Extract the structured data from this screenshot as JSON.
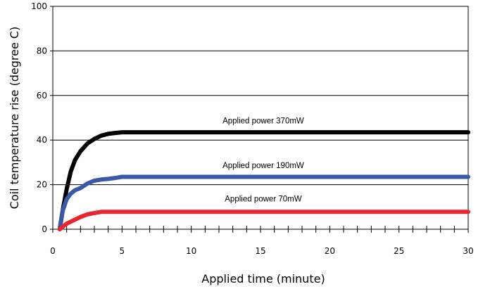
{
  "chart_data": {
    "type": "line",
    "title": "",
    "xlabel": "Applied time (minute)",
    "ylabel": "Coil temperature rise (degree C)",
    "xlim": [
      0,
      30
    ],
    "ylim": [
      0,
      100
    ],
    "x_ticks": [
      0,
      5,
      10,
      15,
      20,
      25,
      30
    ],
    "y_ticks": [
      0,
      20,
      40,
      60,
      80,
      100
    ],
    "grid": "horizontal",
    "legend": "none",
    "series": [
      {
        "color": "#000000",
        "x": [
          0.5,
          0.7,
          1.0,
          1.3,
          1.6,
          2.0,
          2.5,
          3.0,
          3.5,
          4.0,
          4.5,
          5.0,
          6.0,
          8.0,
          10,
          15,
          20,
          25,
          30
        ],
        "y": [
          0,
          8,
          18,
          26,
          31,
          35,
          38.5,
          40.5,
          42,
          42.8,
          43.2,
          43.5,
          43.5,
          43.5,
          43.5,
          43.5,
          43.5,
          43.5,
          43.5
        ]
      },
      {
        "color": "#3b57a6",
        "x": [
          0.5,
          0.7,
          1.0,
          1.3,
          1.6,
          2.0,
          2.5,
          3.0,
          3.5,
          4.0,
          4.5,
          5.0,
          6.0,
          8.0,
          10,
          15,
          20,
          25,
          30
        ],
        "y": [
          0,
          8,
          13.5,
          16,
          17.5,
          18.5,
          20.5,
          21.8,
          22.3,
          22.6,
          23.0,
          23.5,
          23.5,
          23.5,
          23.5,
          23.5,
          23.5,
          23.5,
          23.5
        ]
      },
      {
        "color": "#e8262f",
        "x": [
          0.5,
          0.8,
          1.0,
          1.5,
          2.0,
          2.5,
          3.0,
          3.5,
          4.0,
          5.0,
          6.0,
          10,
          15,
          20,
          25,
          30
        ],
        "y": [
          0,
          1.5,
          2.5,
          4.0,
          5.5,
          6.7,
          7.3,
          7.8,
          7.8,
          7.8,
          7.8,
          7.8,
          7.8,
          7.8,
          7.8,
          7.8
        ]
      }
    ],
    "annotations": [
      {
        "text": "Applied power 370mW",
        "x": 15.2,
        "y": 47.5
      },
      {
        "text": "Applied power 190mW",
        "x": 15.2,
        "y": 27.5
      },
      {
        "text": "Applied power 70mW",
        "x": 15.2,
        "y": 12.5
      }
    ]
  }
}
